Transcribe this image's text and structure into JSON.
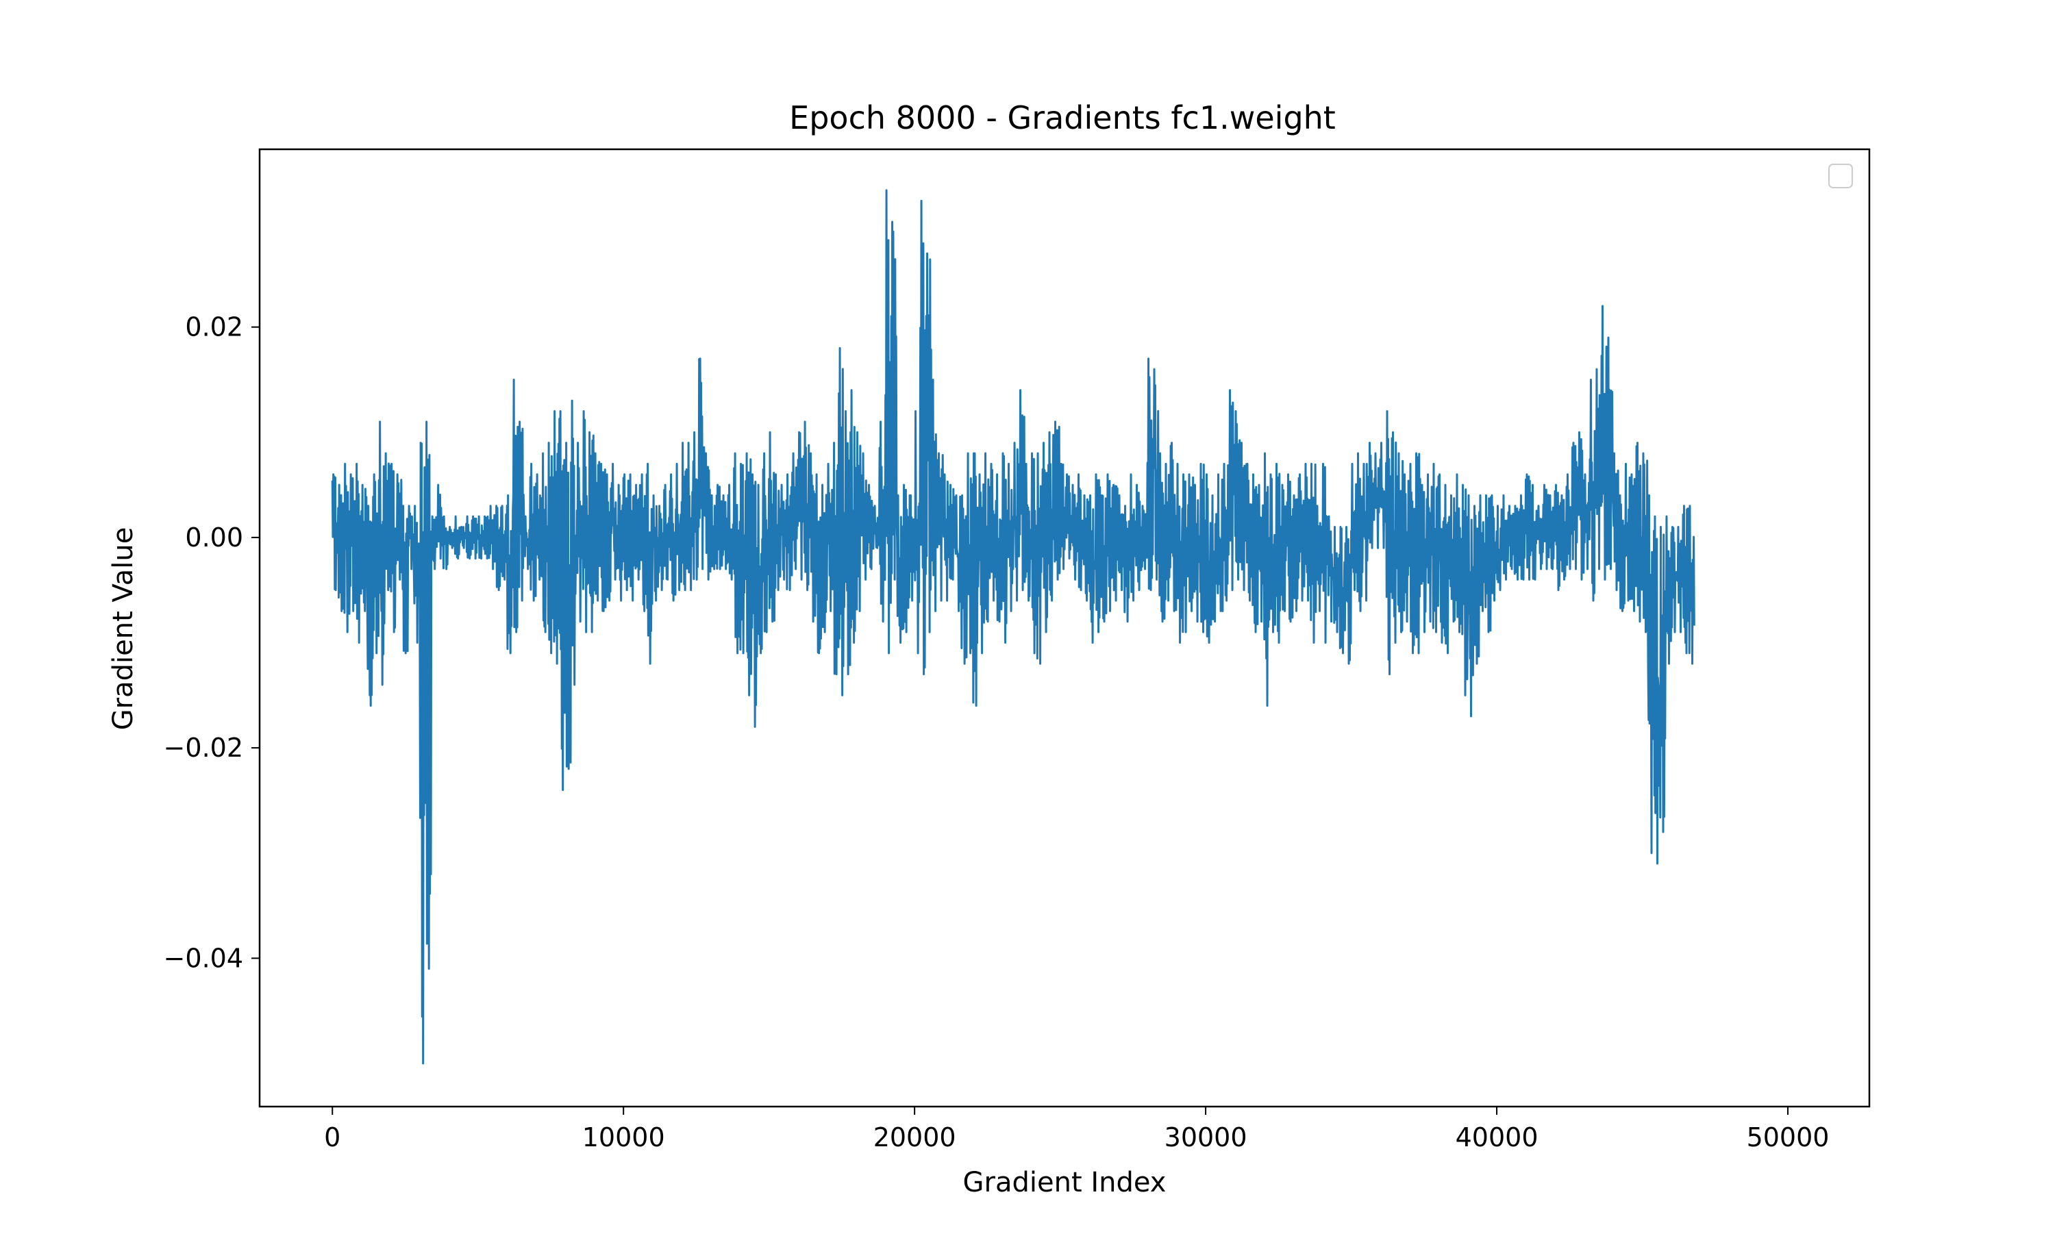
{
  "chart_data": {
    "type": "line",
    "title": "Epoch 8000 - Gradients fc1.weight",
    "xlabel": "Gradient Index",
    "ylabel": "Gradient Value",
    "xlim": [
      -2500,
      52800
    ],
    "ylim": [
      -0.0541,
      0.0369
    ],
    "x_ticks": [
      0,
      10000,
      20000,
      30000,
      40000,
      50000
    ],
    "x_tick_labels": [
      "0",
      "10000",
      "20000",
      "30000",
      "40000",
      "50000"
    ],
    "y_ticks": [
      -0.04,
      -0.02,
      0.0,
      0.02
    ],
    "y_tick_labels": [
      "−0.04",
      "−0.02",
      "0.00",
      "0.02"
    ],
    "grid": false,
    "legend": {
      "placement": "top-right",
      "entries": []
    },
    "series": [
      {
        "color": "#1f77b4",
        "x_range": [
          0,
          50256
        ],
        "envelope_step": 200,
        "envelope_min": [
          -0.005,
          -0.007,
          -0.009,
          -0.007,
          -0.01,
          -0.007,
          -0.016,
          -0.011,
          -0.014,
          -0.005,
          -0.009,
          -0.004,
          -0.011,
          -0.003,
          -0.01,
          -0.05,
          -0.041,
          -0.003,
          -0.002,
          -0.003,
          -0.001,
          -0.002,
          -0.001,
          -0.002,
          -0.002,
          -0.002,
          -0.002,
          -0.003,
          -0.005,
          -0.004,
          -0.011,
          -0.009,
          -0.006,
          -0.003,
          -0.006,
          -0.004,
          -0.009,
          -0.011,
          -0.012,
          -0.024,
          -0.022,
          -0.014,
          -0.008,
          -0.009,
          -0.009,
          -0.006,
          -0.007,
          -0.006,
          -0.004,
          -0.006,
          -0.005,
          -0.006,
          -0.004,
          -0.007,
          -0.012,
          -0.006,
          -0.005,
          -0.004,
          -0.006,
          -0.005,
          -0.005,
          -0.005,
          -0.004,
          -0.003,
          -0.004,
          -0.003,
          -0.003,
          -0.003,
          -0.004,
          -0.011,
          -0.011,
          -0.015,
          -0.018,
          -0.011,
          -0.009,
          -0.008,
          -0.005,
          -0.004,
          -0.005,
          -0.003,
          -0.004,
          -0.005,
          -0.008,
          -0.011,
          -0.009,
          -0.007,
          -0.013,
          -0.015,
          -0.013,
          -0.01,
          -0.007,
          -0.004,
          -0.003,
          -0.001,
          -0.008,
          -0.011,
          -0.004,
          -0.01,
          -0.009,
          -0.006,
          -0.011,
          -0.013,
          -0.009,
          -0.007,
          -0.006,
          -0.006,
          -0.004,
          -0.007,
          -0.012,
          -0.011,
          -0.016,
          -0.011,
          -0.008,
          -0.006,
          -0.008,
          -0.01,
          -0.007,
          -0.006,
          -0.005,
          -0.006,
          -0.011,
          -0.012,
          -0.009,
          -0.006,
          -0.004,
          -0.003,
          -0.002,
          -0.004,
          -0.005,
          -0.006,
          -0.01,
          -0.009,
          -0.008,
          -0.007,
          -0.006,
          -0.005,
          -0.008,
          -0.006,
          -0.005,
          -0.003,
          -0.005,
          -0.004,
          -0.008,
          -0.006,
          -0.007,
          -0.01,
          -0.009,
          -0.007,
          -0.008,
          -0.009,
          -0.01,
          -0.008,
          -0.007,
          -0.006,
          -0.005,
          -0.004,
          -0.005,
          -0.006,
          -0.009,
          -0.008,
          -0.016,
          -0.009,
          -0.01,
          -0.007,
          -0.008,
          -0.007,
          -0.006,
          -0.006,
          -0.01,
          -0.007,
          -0.01,
          -0.008,
          -0.009,
          -0.011,
          -0.012,
          -0.005,
          -0.007,
          -0.006,
          -0.001,
          -0.001,
          -0.001,
          -0.013,
          -0.01,
          -0.009,
          -0.008,
          -0.011,
          -0.011,
          -0.009,
          -0.008,
          -0.009,
          -0.01,
          -0.011,
          -0.008,
          -0.009,
          -0.015,
          -0.017,
          -0.012,
          -0.007,
          -0.009,
          -0.006,
          -0.005,
          -0.004,
          -0.003,
          -0.004,
          -0.004,
          -0.004,
          -0.004,
          -0.003,
          -0.003,
          -0.003,
          -0.005,
          -0.004,
          -0.003,
          -0.003,
          -0.004,
          -0.003,
          -0.006,
          -0.003,
          -0.004,
          -0.003,
          -0.005,
          -0.007,
          -0.006,
          -0.007,
          -0.008,
          -0.009,
          -0.03,
          -0.031,
          -0.028,
          -0.012,
          -0.009,
          -0.009,
          -0.011,
          -0.012,
          -0.011,
          -0.006,
          -0.004,
          -0.004,
          -0.001,
          -0.001,
          -0.001,
          -0.001,
          -0.001
        ],
        "envelope_max": [
          0.006,
          0.005,
          0.007,
          0.006,
          0.007,
          0.005,
          0.003,
          0.006,
          0.011,
          0.008,
          0.007,
          0.006,
          0.003,
          0.003,
          0.003,
          0.009,
          0.011,
          0.002,
          0.005,
          0.002,
          0.001,
          0.002,
          0.001,
          0.002,
          0.002,
          0.002,
          0.002,
          0.003,
          0.003,
          0.003,
          0.004,
          0.015,
          0.011,
          0.002,
          0.007,
          0.006,
          0.008,
          0.009,
          0.012,
          0.012,
          0.009,
          0.013,
          0.009,
          0.012,
          0.01,
          0.008,
          0.007,
          0.006,
          0.007,
          0.005,
          0.006,
          0.006,
          0.005,
          0.006,
          0.007,
          0.004,
          0.003,
          0.005,
          0.006,
          0.007,
          0.009,
          0.009,
          0.01,
          0.017,
          0.008,
          0.004,
          0.005,
          0.004,
          0.005,
          0.008,
          0.007,
          0.008,
          0.006,
          0.005,
          0.008,
          0.01,
          0.006,
          0.005,
          0.006,
          0.008,
          0.01,
          0.011,
          0.008,
          0.006,
          0.005,
          0.007,
          0.009,
          0.018,
          0.012,
          0.014,
          0.01,
          0.008,
          0.005,
          0.003,
          0.011,
          0.033,
          0.03,
          0.004,
          0.005,
          0.004,
          0.012,
          0.032,
          0.027,
          0.015,
          0.008,
          0.006,
          0.005,
          0.004,
          0.004,
          0.008,
          0.008,
          0.006,
          0.008,
          0.007,
          0.006,
          0.008,
          0.007,
          0.009,
          0.014,
          0.007,
          0.008,
          0.008,
          0.009,
          0.01,
          0.011,
          0.007,
          0.006,
          0.005,
          0.006,
          0.004,
          0.004,
          0.006,
          0.004,
          0.006,
          0.005,
          0.004,
          0.003,
          0.006,
          0.005,
          0.003,
          0.017,
          0.016,
          0.008,
          0.007,
          0.009,
          0.007,
          0.006,
          0.006,
          0.005,
          0.007,
          0.006,
          0.004,
          0.006,
          0.007,
          0.014,
          0.012,
          0.009,
          0.007,
          0.006,
          0.005,
          0.008,
          0.006,
          0.007,
          0.005,
          0.006,
          0.004,
          0.006,
          0.007,
          0.007,
          0.003,
          0.007,
          0.002,
          0.001,
          0.001,
          0.001,
          0.007,
          0.008,
          0.007,
          0.009,
          0.008,
          0.009,
          0.012,
          0.01,
          0.008,
          0.006,
          0.007,
          0.008,
          0.005,
          0.006,
          0.007,
          0.006,
          0.005,
          0.004,
          0.006,
          0.005,
          0.004,
          0.003,
          0.004,
          0.004,
          0.004,
          0.003,
          0.004,
          0.003,
          0.003,
          0.004,
          0.006,
          0.005,
          0.003,
          0.005,
          0.004,
          0.005,
          0.004,
          0.006,
          0.009,
          0.01,
          0.006,
          0.015,
          0.016,
          0.022,
          0.019,
          0.008,
          0.004,
          0.007,
          0.006,
          0.009,
          0.008,
          0.004,
          0.002,
          0.001,
          0.002,
          0.001,
          0.001,
          0.003,
          0.003
        ]
      }
    ]
  }
}
